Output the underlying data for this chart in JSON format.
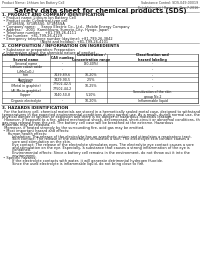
{
  "title": "Safety data sheet for chemical products (SDS)",
  "header_left": "Product Name: Lithium Ion Battery Cell",
  "header_right": "Substance Control: SDS-049-00019\nEstablishment / Revision: Dec.7.2016",
  "section1_title": "1. PRODUCT AND COMPANY IDENTIFICATION",
  "section1_lines": [
    " • Product name: Lithium Ion Battery Cell",
    " • Product code: Cylindrical-type cell",
    "     SY1865SJ, SY1865S0, SY1865SA",
    " • Company name:     Sanyo Electric Co., Ltd.,  Mobile Energy Company",
    " • Address:    2001  Kamitokura, Sumoto-City, Hyogo, Japan",
    " • Telephone number:    +81-799-26-4111",
    " • Fax number:  +81-799-26-4129",
    " • Emergency telephone number (daytime): +81-799-26-3842",
    "                                  (Night and holiday): +81-799-26-4101"
  ],
  "section2_title": "2. COMPOSITION / INFORMATION ON INGREDIENTS",
  "section2_intro": " • Substance or preparation: Preparation",
  "section2_sub": " • Information about the chemical nature of product",
  "table_headers": [
    "Common chemical name /\nSeveral name",
    "CAS number",
    "Concentration /\nConcentration range",
    "Classification and\nhazard labeling"
  ],
  "table_col1": [
    "Several name",
    "Lithium cobalt oxide\n(LiMnCoO₄)",
    "Iron",
    "Aluminum",
    "Graphite\n(Metal in graphite)\n(Al-Mn in graphite)",
    "Copper",
    "Organic electrolyte"
  ],
  "table_col2": [
    "-",
    "-",
    "7439-89-6",
    "7429-90-5",
    "77502-42-5\n77502-44-2",
    "7440-50-8",
    "-"
  ],
  "table_col3": [
    "(30-40%)",
    "-",
    "10-20%",
    "2-5%",
    "10-25%",
    "5-10%",
    "10-20%"
  ],
  "table_col4": [
    "-",
    "-",
    "-",
    "-",
    "-",
    "Sensitization of the skin\ngroup No.2",
    "Inflammable liquid"
  ],
  "section3_title": "3. HAZARDS IDENTIFICATION",
  "section3_para1": "  For the battery cell, chemical materials are stored in a hermetically sealed metal case, designed to withstand",
  "section3_para2": "temperatures in the expected environmental conditions during normal use. As a result, during normal use, there is no",
  "section3_para3": "physical danger of ignition or explosion and there is no danger of hazardous materials leakage.",
  "section3_para4": "  However, if exposed to a fire, added mechanical shock, decomposed, short-circuit or abnormal conditions, the",
  "section3_para5": "gas may release from the cell. The battery cell case will be breached at the extreme. Hazardous",
  "section3_para6": "materials may be released.",
  "section3_para7": "  Moreover, if heated strongly by the surrounding fire, acid gas may be emitted.",
  "section3_b1": " • Most important hazard and effects:",
  "section3_b2": "     Human health effects:",
  "section3_b3": "         Inhalation: The release of the electrolyte has an anesthetic action and stimulates a respiratory tract.",
  "section3_b4": "         Skin contact: The release of the electrolyte stimulates a skin. The electrolyte skin contact causes a",
  "section3_b5": "         sore and stimulation on the skin.",
  "section3_b6": "         Eye contact: The release of the electrolyte stimulates eyes. The electrolyte eye contact causes a sore",
  "section3_b7": "         and stimulation on the eye. Especially, a substance that causes a strong inflammation of the eye is",
  "section3_b8": "         contained.",
  "section3_b9": "         Environmental effects: Since a battery cell remains in the environment, do not throw out it into the",
  "section3_b10": "         environment.",
  "section3_b11": " • Specific hazards:",
  "section3_b12": "         If the electrolyte contacts with water, it will generate detrimental hydrogen fluoride.",
  "section3_b13": "         Since the used electrolyte is inflammable liquid, do not bring close to fire.",
  "bg_color": "#ffffff",
  "text_color": "#1a1a1a",
  "line_color": "#555555",
  "title_fontsize": 4.8,
  "body_fontsize": 2.5,
  "section_fontsize": 3.0,
  "header_fontsize": 2.3,
  "table_fontsize": 2.3
}
